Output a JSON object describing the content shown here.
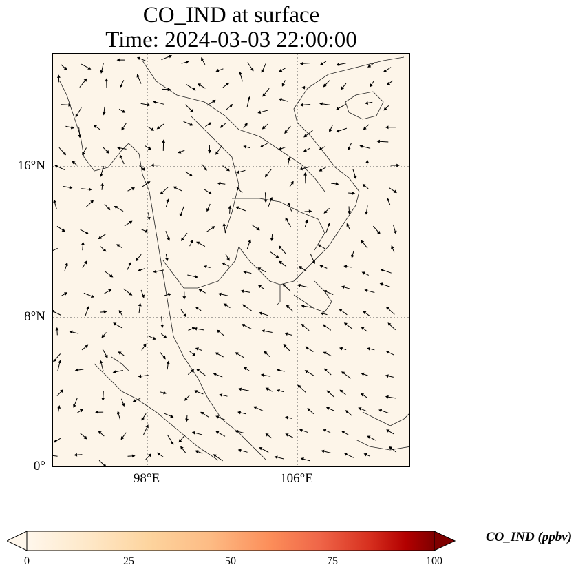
{
  "title": {
    "line1": "CO_IND at surface",
    "line2": "Time: 2024-03-03 22:00:00"
  },
  "axes": {
    "lat_ticks": [
      "16°N",
      "8°N",
      "0°"
    ],
    "lon_ticks": [
      "98°E",
      "106°E"
    ],
    "lon_range": [
      93,
      112
    ],
    "lat_range": [
      0,
      22
    ]
  },
  "colorbar": {
    "label": "CO_IND (ppbv)",
    "ticks": [
      "0",
      "25",
      "50",
      "75",
      "100"
    ],
    "range": [
      0,
      100
    ],
    "colormap": "OrRd",
    "extend": "both"
  },
  "colors": {
    "low": "#fff7ec",
    "mid": "#fc8d59",
    "high": "#7f0000"
  }
}
